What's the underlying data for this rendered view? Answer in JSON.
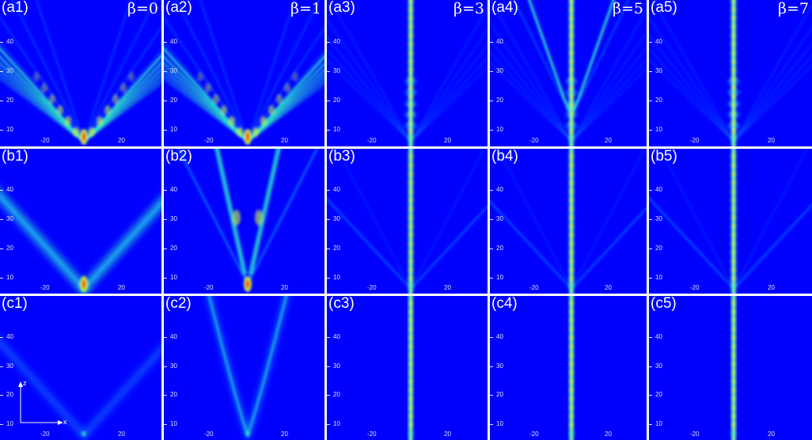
{
  "figure": {
    "columns": [
      {
        "beta_label": "β=0"
      },
      {
        "beta_label": "β=1"
      },
      {
        "beta_label": "β=3"
      },
      {
        "beta_label": "β=5"
      },
      {
        "beta_label": "β=7"
      }
    ],
    "rows": [
      {
        "row": "a",
        "labels": [
          "(a1)",
          "(a2)",
          "(a3)",
          "(a4)",
          "(a5)"
        ]
      },
      {
        "row": "b",
        "labels": [
          "(b1)",
          "(b2)",
          "(b3)",
          "(b4)",
          "(b5)"
        ]
      },
      {
        "row": "c",
        "labels": [
          "(c1)",
          "(c2)",
          "(c3)",
          "(c4)",
          "(c5)"
        ]
      }
    ],
    "y_ticks": [
      "40",
      "30",
      "20",
      "10"
    ],
    "x_ticks": [
      "-20",
      "20"
    ],
    "axis_labels": {
      "z": "z",
      "x": "x"
    },
    "colors": {
      "background": "#0000ff",
      "beam_low": "#14b4ff",
      "beam_mid": "#2ef0c8",
      "beam_high": "#c8ff3c",
      "beam_peak": "#ff2a00",
      "separator": "#ffffff"
    },
    "panels": [
      {
        "id": "a1",
        "pattern": "x-lattice",
        "central_beam": false,
        "bright_origin": true
      },
      {
        "id": "a2",
        "pattern": "x-lattice",
        "central_beam": false,
        "bright_origin": true
      },
      {
        "id": "a3",
        "pattern": "faint-x",
        "central_beam": true,
        "bright_origin": false
      },
      {
        "id": "a4",
        "pattern": "x-with-outer-beams",
        "central_beam": true,
        "bright_origin": false
      },
      {
        "id": "a5",
        "pattern": "faint-x",
        "central_beam": true,
        "bright_origin": false
      },
      {
        "id": "b1",
        "pattern": "broad-v",
        "central_beam": false,
        "bright_origin": true
      },
      {
        "id": "b2",
        "pattern": "split-v",
        "central_beam": false,
        "bright_origin": true
      },
      {
        "id": "b3",
        "pattern": "thin-v",
        "central_beam": true,
        "bright_origin": false
      },
      {
        "id": "b4",
        "pattern": "thin-v",
        "central_beam": true,
        "bright_origin": false
      },
      {
        "id": "b5",
        "pattern": "thin-v",
        "central_beam": true,
        "bright_origin": false
      },
      {
        "id": "c1",
        "pattern": "faint-v",
        "central_beam": false,
        "bright_origin": false
      },
      {
        "id": "c2",
        "pattern": "parabola",
        "central_beam": false,
        "bright_origin": false
      },
      {
        "id": "c3",
        "pattern": "beam-only",
        "central_beam": true,
        "bright_origin": false
      },
      {
        "id": "c4",
        "pattern": "beam-only",
        "central_beam": true,
        "bright_origin": false
      },
      {
        "id": "c5",
        "pattern": "beam-only",
        "central_beam": true,
        "bright_origin": false
      }
    ]
  }
}
